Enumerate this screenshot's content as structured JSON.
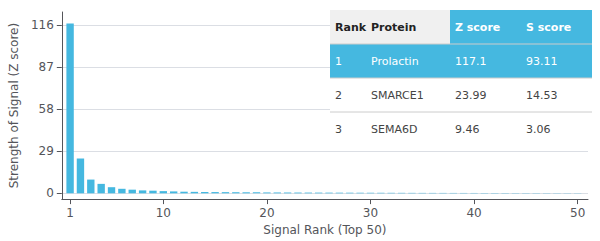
{
  "chart_data": {
    "type": "bar",
    "x": [
      1,
      2,
      3,
      4,
      5,
      6,
      7,
      8,
      9,
      10,
      11,
      12,
      13,
      14,
      15,
      16,
      17,
      18,
      19,
      20,
      21,
      22,
      23,
      24,
      25,
      26,
      27,
      28,
      29,
      30,
      31,
      32,
      33,
      34,
      35,
      36,
      37,
      38,
      39,
      40,
      41,
      42,
      43,
      44,
      45,
      46,
      47,
      48,
      49,
      50
    ],
    "values": [
      117.1,
      23.99,
      9.46,
      6.5,
      4.2,
      3.1,
      2.5,
      2.0,
      1.8,
      1.5,
      1.3,
      1.1,
      1.0,
      0.9,
      0.85,
      0.8,
      0.75,
      0.7,
      0.65,
      0.6,
      0.58,
      0.55,
      0.52,
      0.5,
      0.48,
      0.46,
      0.44,
      0.42,
      0.4,
      0.38,
      0.36,
      0.34,
      0.32,
      0.3,
      0.28,
      0.27,
      0.26,
      0.25,
      0.24,
      0.23,
      0.22,
      0.21,
      0.2,
      0.19,
      0.18,
      0.17,
      0.16,
      0.15,
      0.14,
      0.13
    ],
    "color": "#45b8e0",
    "xlabel": "Signal Rank (Top 50)",
    "ylabel": "Strength of Signal (Z score)",
    "xlim": [
      0.2,
      51
    ],
    "xticks": [
      1,
      10,
      20,
      30,
      40,
      50
    ],
    "ylim": [
      -4,
      125
    ],
    "yticks": [
      0,
      29,
      58,
      87,
      116
    ],
    "grid": true,
    "table": {
      "columns": [
        "Rank",
        "Protein",
        "Z score",
        "S score"
      ],
      "rows": [
        [
          "1",
          "Prolactin",
          "117.1",
          "93.11"
        ],
        [
          "2",
          "SMARCE1",
          "23.99",
          "14.53"
        ],
        [
          "3",
          "SEMA6D",
          "9.46",
          "3.06"
        ]
      ]
    }
  }
}
